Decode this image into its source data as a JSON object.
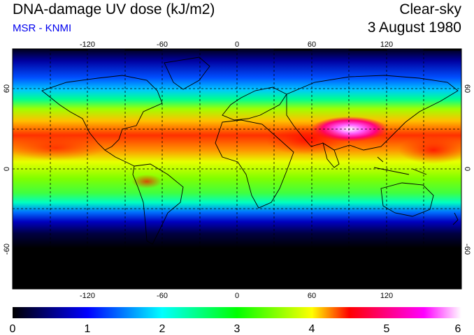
{
  "header": {
    "title": "DNA-damage UV dose (kJ/m2)",
    "source": "MSR - KNMI",
    "condition": "Clear-sky",
    "date": "3 August 1980"
  },
  "map": {
    "projection": "equirectangular",
    "lon_range": [
      -180,
      180
    ],
    "lat_range": [
      -90,
      90
    ],
    "lon_ticks": [
      "-120",
      "-60",
      "0",
      "60",
      "120"
    ],
    "lat_ticks": [
      "60",
      "0",
      "-60"
    ],
    "graticule": "dashed every 30 degrees",
    "coastlines": "black outlines of continents"
  },
  "colorbar": {
    "labels": [
      "0",
      "1",
      "2",
      "3",
      "4",
      "5",
      "6"
    ],
    "min": 0,
    "max": 6,
    "colors": [
      "#000000",
      "#0000ff",
      "#00ffff",
      "#00ff00",
      "#ffff00",
      "#ff0000",
      "#ff00ff",
      "#ffffff"
    ]
  },
  "chart_data": {
    "type": "heatmap",
    "title": "DNA-damage UV dose (kJ/m2)",
    "units": "kJ/m2",
    "colorbar_range": [
      0,
      6
    ],
    "approx_zonal_values": [
      {
        "lat": 80,
        "value": 0.6
      },
      {
        "lat": 60,
        "value": 1.8
      },
      {
        "lat": 45,
        "value": 3.0
      },
      {
        "lat": 30,
        "value": 4.0
      },
      {
        "lat": 20,
        "value": 4.3
      },
      {
        "lat": 10,
        "value": 3.5
      },
      {
        "lat": 0,
        "value": 3.0
      },
      {
        "lat": -15,
        "value": 2.8
      },
      {
        "lat": -30,
        "value": 1.3
      },
      {
        "lat": -45,
        "value": 0.3
      },
      {
        "lat": -60,
        "value": 0.05
      },
      {
        "lat": -80,
        "value": 0.0
      }
    ],
    "notable_maximum": {
      "region": "Tibetan Plateau",
      "value": 6.0
    }
  }
}
